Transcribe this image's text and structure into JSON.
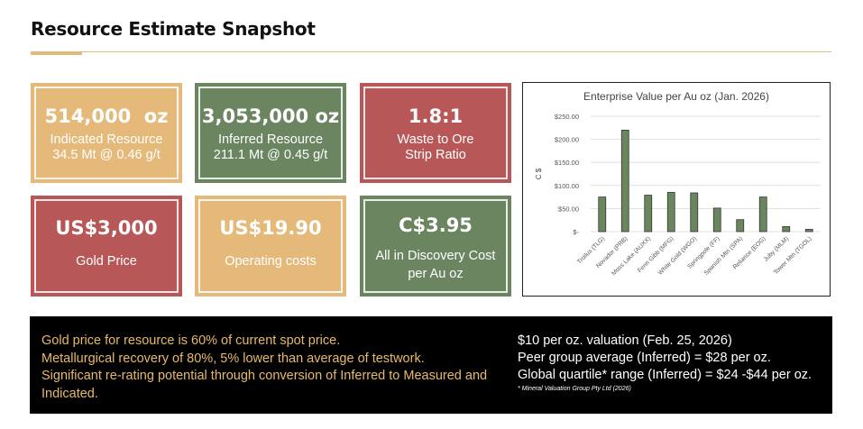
{
  "title": "Resource Estimate Snapshot",
  "tiles": {
    "indicated": {
      "value": "514,000  oz",
      "line1": "Indicated Resource",
      "line2": "34.5 Mt @ 0.46 g/t",
      "color": "#e4b97a"
    },
    "inferred": {
      "value": "3,053,000 oz",
      "line1": "Inferred Resource",
      "line2": "211.1 Mt @ 0.45 g/t",
      "color": "#6a8560"
    },
    "strip": {
      "value": "1.8:1",
      "line1": "Waste to Ore",
      "line2": "Strip Ratio",
      "color": "#b75757"
    },
    "gold": {
      "value": "US$3,000",
      "line1": "Gold Price",
      "color": "#b75757"
    },
    "opcost": {
      "value": "US$19.90",
      "line1": "Operating costs",
      "color": "#e4b97a"
    },
    "discovery": {
      "value": "C$3.95",
      "line1": "All in Discovery Cost",
      "line2": "per Au oz",
      "color": "#6a8560"
    }
  },
  "chart_data": {
    "type": "bar",
    "title": "Enterprise Value per Au oz (Jan. 2026)",
    "ylabel": "C $",
    "ylim": [
      0,
      250
    ],
    "yticks": [
      "$250.00",
      "$200.00",
      "$150.00",
      "$100.00",
      "$50.00",
      "$-"
    ],
    "ytick_values": [
      250,
      200,
      150,
      100,
      50,
      0
    ],
    "grid": true,
    "bar_color": "#6a8560",
    "categories": [
      "Troilus (TLG)",
      "Novador (PRB)",
      "Moss Lake (AUXX)",
      "Fenn Gibb (MFG)",
      "White Gold (WGO)",
      "Springpole (FF)",
      "Spanish Mtn (SPA)",
      "Reliance (EOG)",
      "Juby (MLM)",
      "Tower Mtn (TGOL)"
    ],
    "values": [
      75,
      220,
      79,
      85,
      84,
      51,
      26,
      75,
      11,
      5
    ]
  },
  "panel": {
    "left_lines": [
      "Gold price for resource is 60% of current spot price.",
      "Metallurgical recovery of 80%, 5% lower than average of testwork.",
      "Significant re-rating potential through conversion of Inferred to Measured and Indicated."
    ],
    "right_lines": [
      "$10 per oz. valuation (Feb. 25, 2026)",
      "Peer group average (Inferred) = $28 per oz.",
      "Global quartile* range (Inferred) = $24 -$44 per oz."
    ],
    "footnote": "* Mineral Valuation Group Pty Ltd (2026)",
    "left_color": "#e8b96a"
  }
}
